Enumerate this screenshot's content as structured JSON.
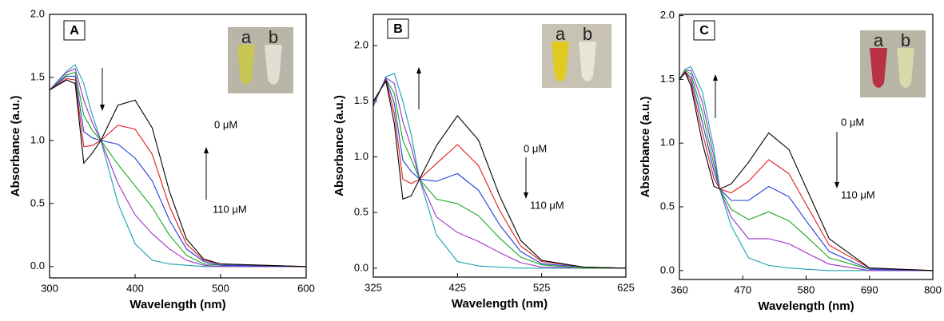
{
  "chart_data": [
    {
      "type": "line",
      "panel_label": "A",
      "xlabel": "Wavelength (nm)",
      "ylabel": "Absorbance (a.u.)",
      "xlim": [
        300,
        600
      ],
      "xticks": [
        300,
        400,
        500,
        600
      ],
      "ylim": [
        -0.09,
        2.0
      ],
      "yticks": [
        {
          "value": 0,
          "label": "0.0"
        },
        {
          "value": 0.5,
          "label": "0.5"
        },
        {
          "value": 1,
          "label": "1.0"
        },
        {
          "value": 1.5,
          "label": "1.5"
        },
        {
          "value": 2,
          "label": "2.0"
        }
      ],
      "annotations": [
        "0 μM",
        "110 μM"
      ],
      "inset_labels": [
        "a",
        "b"
      ],
      "x": [
        300,
        320,
        330,
        340,
        350,
        360,
        380,
        400,
        420,
        440,
        460,
        480,
        500,
        600
      ],
      "series": [
        {
          "color": "#000000",
          "values": [
            1.4,
            1.48,
            1.45,
            0.82,
            0.9,
            1.0,
            1.28,
            1.32,
            1.1,
            0.6,
            0.22,
            0.06,
            0.02,
            0
          ]
        },
        {
          "color": "#e41a1c",
          "values": [
            1.4,
            1.49,
            1.48,
            0.95,
            0.96,
            1.0,
            1.12,
            1.09,
            0.89,
            0.48,
            0.18,
            0.05,
            0.02,
            0
          ]
        },
        {
          "color": "#1f3fd6",
          "values": [
            1.4,
            1.51,
            1.51,
            1.07,
            1.02,
            1.0,
            0.97,
            0.86,
            0.68,
            0.37,
            0.14,
            0.04,
            0.01,
            0
          ]
        },
        {
          "color": "#1aa81a",
          "values": [
            1.4,
            1.52,
            1.54,
            1.2,
            1.08,
            1.0,
            0.81,
            0.64,
            0.47,
            0.25,
            0.09,
            0.02,
            0.01,
            0
          ]
        },
        {
          "color": "#9b30c8",
          "values": [
            1.4,
            1.54,
            1.57,
            1.32,
            1.14,
            1.0,
            0.66,
            0.41,
            0.26,
            0.14,
            0.05,
            0.01,
            0,
            0
          ]
        },
        {
          "color": "#1a9fb0",
          "values": [
            1.4,
            1.55,
            1.6,
            1.45,
            1.2,
            1.0,
            0.5,
            0.18,
            0.05,
            0.02,
            0.01,
            0,
            0,
            0
          ]
        }
      ]
    },
    {
      "type": "line",
      "panel_label": "B",
      "xlabel": "Wavelength (nm)",
      "ylabel": "Absorbance (a.u.)",
      "xlim": [
        325,
        625
      ],
      "xticks": [
        325,
        425,
        525,
        625
      ],
      "ylim": [
        -0.08,
        2.28
      ],
      "yticks": [
        {
          "value": 0,
          "label": "0.0"
        },
        {
          "value": 0.5,
          "label": "0.5"
        },
        {
          "value": 1,
          "label": "1.0"
        },
        {
          "value": 1.5,
          "label": "1.5"
        },
        {
          "value": 2,
          "label": "2.0"
        }
      ],
      "annotations": [
        "0 μM",
        "110 μM"
      ],
      "inset_labels": [
        "a",
        "b"
      ],
      "x": [
        325,
        340,
        350,
        360,
        370,
        380,
        400,
        425,
        450,
        475,
        500,
        525,
        575,
        625
      ],
      "series": [
        {
          "color": "#000000",
          "values": [
            1.5,
            1.68,
            1.3,
            0.62,
            0.65,
            0.8,
            1.1,
            1.37,
            1.15,
            0.65,
            0.25,
            0.07,
            0.01,
            0
          ]
        },
        {
          "color": "#e41a1c",
          "values": [
            1.49,
            1.69,
            1.39,
            0.8,
            0.76,
            0.8,
            0.94,
            1.11,
            0.92,
            0.52,
            0.2,
            0.06,
            0.01,
            0
          ]
        },
        {
          "color": "#1f3fd6",
          "values": [
            1.48,
            1.7,
            1.48,
            0.97,
            0.87,
            0.8,
            0.78,
            0.85,
            0.7,
            0.39,
            0.15,
            0.04,
            0.01,
            0
          ]
        },
        {
          "color": "#1aa81a",
          "values": [
            1.47,
            1.7,
            1.57,
            1.15,
            0.98,
            0.8,
            0.62,
            0.58,
            0.47,
            0.27,
            0.1,
            0.03,
            0,
            0
          ]
        },
        {
          "color": "#9b30c8",
          "values": [
            1.46,
            1.71,
            1.66,
            1.32,
            1.09,
            0.8,
            0.46,
            0.32,
            0.24,
            0.14,
            0.05,
            0.01,
            0,
            0
          ]
        },
        {
          "color": "#1a9fb0",
          "values": [
            1.45,
            1.72,
            1.75,
            1.5,
            1.2,
            0.8,
            0.3,
            0.06,
            0.02,
            0.01,
            0,
            0,
            0,
            0
          ]
        }
      ]
    },
    {
      "type": "line",
      "panel_label": "C",
      "xlabel": "Wavelength (nm)",
      "ylabel": "Absorbance (a.u.)",
      "xlim": [
        360,
        800
      ],
      "xticks": [
        360,
        470,
        580,
        690,
        800
      ],
      "ylim": [
        -0.07,
        2.01
      ],
      "yticks": [
        {
          "value": 0,
          "label": "0.0"
        },
        {
          "value": 0.5,
          "label": "0.5"
        },
        {
          "value": 1,
          "label": "1.0"
        },
        {
          "value": 1.5,
          "label": "1.5"
        },
        {
          "value": 2,
          "label": "2.0"
        }
      ],
      "annotations": [
        "0 μM",
        "110 μM"
      ],
      "inset_labels": [
        "a",
        "b"
      ],
      "x": [
        360,
        370,
        380,
        400,
        420,
        430,
        450,
        480,
        515,
        550,
        580,
        620,
        690,
        800
      ],
      "series": [
        {
          "color": "#000000",
          "values": [
            1.5,
            1.55,
            1.45,
            1.0,
            0.66,
            0.64,
            0.68,
            0.85,
            1.08,
            0.95,
            0.65,
            0.25,
            0.02,
            0
          ]
        },
        {
          "color": "#e41a1c",
          "values": [
            1.5,
            1.56,
            1.48,
            1.08,
            0.72,
            0.64,
            0.61,
            0.7,
            0.87,
            0.76,
            0.52,
            0.2,
            0.02,
            0
          ]
        },
        {
          "color": "#1f3fd6",
          "values": [
            1.5,
            1.56,
            1.51,
            1.16,
            0.78,
            0.64,
            0.55,
            0.55,
            0.66,
            0.58,
            0.39,
            0.15,
            0.01,
            0
          ]
        },
        {
          "color": "#1aa81a",
          "values": [
            1.5,
            1.57,
            1.54,
            1.24,
            0.83,
            0.64,
            0.48,
            0.4,
            0.46,
            0.39,
            0.27,
            0.1,
            0.01,
            0
          ]
        },
        {
          "color": "#9b30c8",
          "values": [
            1.5,
            1.57,
            1.57,
            1.32,
            0.89,
            0.64,
            0.42,
            0.25,
            0.25,
            0.21,
            0.14,
            0.05,
            0,
            0
          ]
        },
        {
          "color": "#1a9fb0",
          "values": [
            1.5,
            1.58,
            1.6,
            1.4,
            0.95,
            0.64,
            0.35,
            0.1,
            0.04,
            0.02,
            0.01,
            0,
            0,
            0
          ]
        }
      ]
    }
  ]
}
